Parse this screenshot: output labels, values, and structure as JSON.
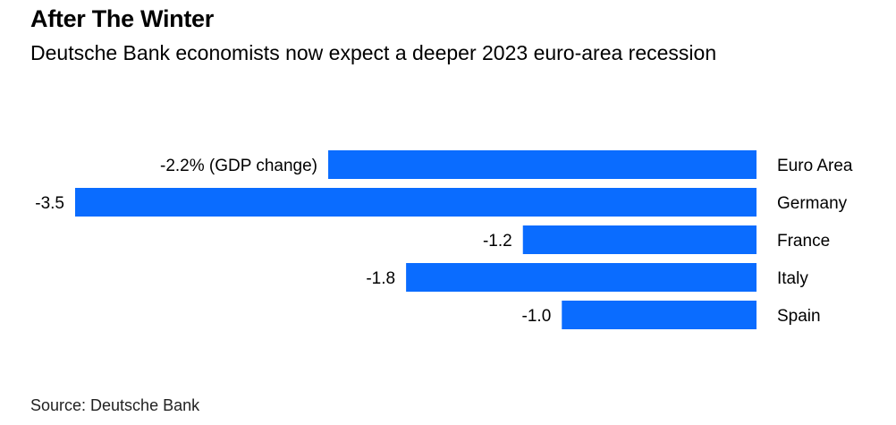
{
  "title": "After The Winter",
  "subtitle": "Deutsche Bank economists now expect a deeper 2023 euro-area recession",
  "source": "Source: Deutsche Bank",
  "colors": {
    "bar": "#0a6cff"
  },
  "chart_data": {
    "type": "bar",
    "orientation": "horizontal",
    "categories": [
      "Euro Area",
      "Germany",
      "France",
      "Italy",
      "Spain"
    ],
    "values": [
      -2.2,
      -3.5,
      -1.2,
      -1.8,
      -1.0
    ],
    "data_labels": [
      "-2.2% (GDP change)",
      "-3.5",
      "-1.2",
      "-1.8",
      "-1.0"
    ],
    "title": "After The Winter",
    "subtitle": "Deutsche Bank economists now expect a deeper 2023 euro-area recession",
    "xlim": [
      -3.5,
      0
    ],
    "grid": false,
    "legend": "none"
  }
}
